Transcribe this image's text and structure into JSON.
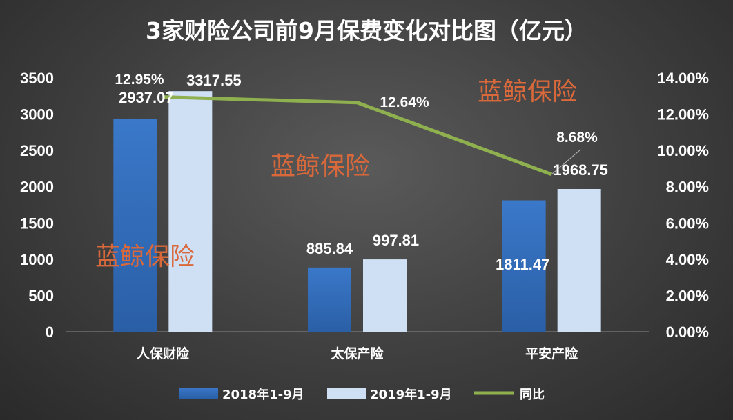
{
  "colors": {
    "series_2018": "#3a78c9",
    "series_2019": "#cfe0f5",
    "yoy_line": "#8fb04e",
    "watermark": "#d9683b"
  },
  "chart_data": {
    "type": "bar",
    "title": "3家财险公司前9月保费变化对比图（亿元）",
    "categories": [
      "人保财险",
      "太保产险",
      "平安产险"
    ],
    "series": [
      {
        "name": "2018年1-9月",
        "values": [
          2937.07,
          885.84,
          1811.47
        ],
        "labels": [
          "2937.07",
          "885.84",
          "1811.47"
        ]
      },
      {
        "name": "2019年1-9月",
        "values": [
          3317.55,
          997.81,
          1968.75
        ],
        "labels": [
          "3317.55",
          "997.81",
          "1968.75"
        ]
      }
    ],
    "line_series": {
      "name": "同比",
      "values": [
        12.95,
        12.64,
        8.68
      ],
      "labels": [
        "12.95%",
        "12.64%",
        "8.68%"
      ]
    },
    "ylim": [
      0,
      3500
    ],
    "yticks": [
      "0",
      "500",
      "1000",
      "1500",
      "2000",
      "2500",
      "3000",
      "3500"
    ],
    "y2lim": [
      0,
      14
    ],
    "y2ticks": [
      "0.00%",
      "2.00%",
      "4.00%",
      "6.00%",
      "8.00%",
      "10.00%",
      "12.00%",
      "14.00%"
    ],
    "grid": false,
    "legend_position": "bottom",
    "watermarks": [
      "蓝鲸保险",
      "蓝鲸保险",
      "蓝鲸保险"
    ]
  }
}
